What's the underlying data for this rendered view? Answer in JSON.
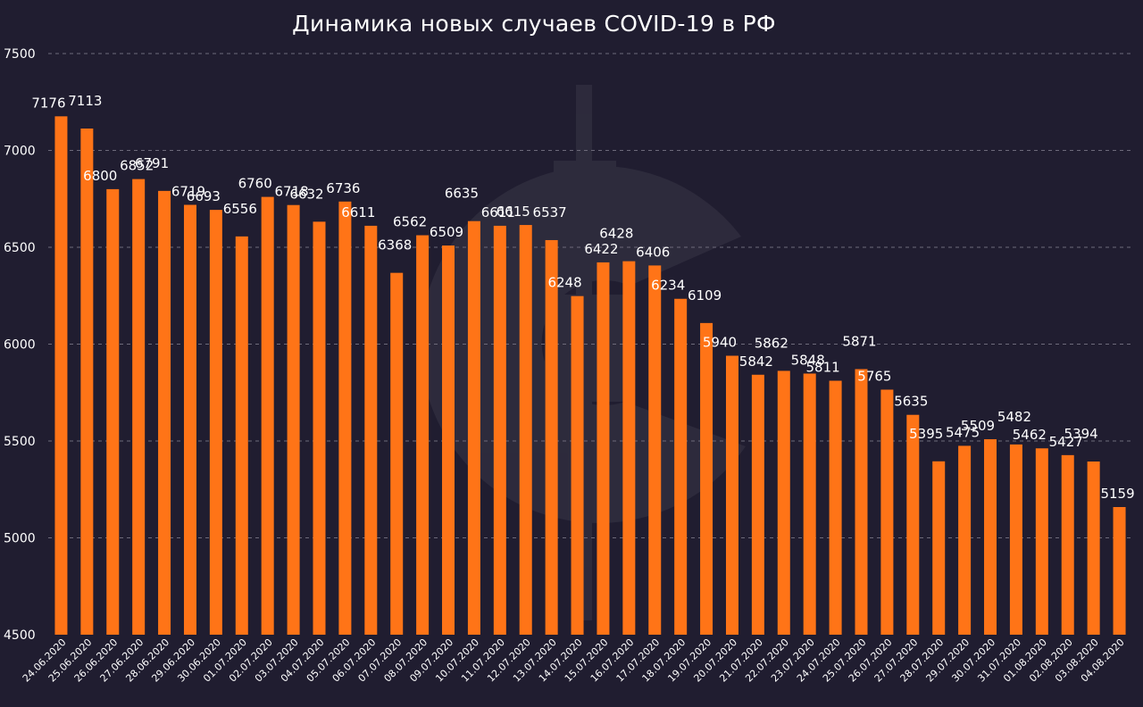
{
  "chart_data": {
    "type": "bar",
    "title": "Динамика новых случаев COVID-19 в РФ",
    "xlabel": "",
    "ylabel": "",
    "ylim": [
      4500,
      7500
    ],
    "yticks": [
      4500,
      5000,
      5500,
      6000,
      6500,
      7000,
      7500
    ],
    "grid": true,
    "legend": "none",
    "categories": [
      "24.06.2020",
      "25.06.2020",
      "26.06.2020",
      "27.06.2020",
      "28.06.2020",
      "29.06.2020",
      "30.06.2020",
      "01.07.2020",
      "02.07.2020",
      "03.07.2020",
      "04.07.2020",
      "05.07.2020",
      "06.07.2020",
      "07.07.2020",
      "08.07.2020",
      "09.07.2020",
      "10.07.2020",
      "11.07.2020",
      "12.07.2020",
      "13.07.2020",
      "14.07.2020",
      "15.07.2020",
      "16.07.2020",
      "17.07.2020",
      "18.07.2020",
      "19.07.2020",
      "20.07.2020",
      "21.07.2020",
      "22.07.2020",
      "23.07.2020",
      "24.07.2020",
      "25.07.2020",
      "26.07.2020",
      "27.07.2020",
      "28.07.2020",
      "29.07.2020",
      "30.07.2020",
      "31.07.2020",
      "01.08.2020",
      "02.08.2020",
      "03.08.2020",
      "04.08.2020"
    ],
    "values": [
      7176,
      7113,
      6800,
      6852,
      6791,
      6719,
      6693,
      6556,
      6760,
      6718,
      6632,
      6736,
      6611,
      6368,
      6562,
      6509,
      6635,
      6611,
      6615,
      6537,
      6248,
      6422,
      6428,
      6406,
      6234,
      6109,
      5940,
      5842,
      5862,
      5848,
      5811,
      5871,
      5765,
      5635,
      5395,
      5475,
      5509,
      5482,
      5462,
      5427,
      5394,
      5159
    ],
    "bar_color": "#ff7417",
    "background_color": "#201d30",
    "grid_color": "#6d6a7a"
  }
}
